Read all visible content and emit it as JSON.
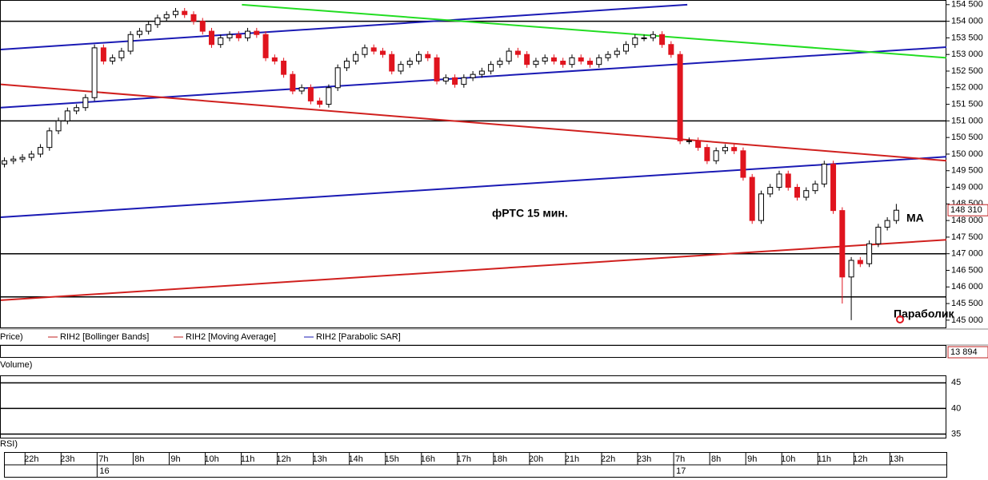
{
  "chart_data": {
    "type": "candlestick",
    "annotations": [
      "фРТС   15 мин.",
      "MA",
      "Параболик"
    ],
    "legend": [
      "Price)",
      "RIH2 [Bollinger Bands]",
      "RIH2 [Moving Average]",
      "RIH2 [Parabolic SAR]"
    ],
    "panels": {
      "volume": "Volume)",
      "rsi": "RSI)"
    },
    "up_color": "#ffffff",
    "down_color": "#e0141e",
    "x": [
      -0.75,
      -0.5,
      -0.25,
      0,
      0.25,
      0.5,
      0.75,
      1,
      1.25,
      1.5,
      1.75,
      2,
      2.25,
      2.5,
      2.75,
      3,
      3.25,
      3.5,
      3.75,
      4,
      4.25,
      4.5,
      4.75,
      5,
      5.25,
      5.5,
      5.75,
      6,
      6.25,
      6.5,
      6.75,
      7,
      7.25,
      7.5,
      7.75,
      8,
      8.25,
      8.5,
      8.75,
      9,
      9.25,
      9.5,
      9.75,
      10,
      10.25,
      10.5,
      10.75,
      11,
      11.25,
      11.5,
      11.75,
      12,
      12.25,
      12.5,
      12.75,
      13,
      13.25,
      13.5,
      13.75,
      14,
      14.25,
      14.5,
      14.75,
      15,
      15.25,
      15.5,
      15.75,
      16,
      16.25,
      16.5,
      16.75,
      17,
      17.25,
      17.5,
      17.75,
      18,
      18.25,
      18.5,
      18.75,
      19,
      19.25,
      19.5,
      19.75,
      20,
      20.25,
      20.5,
      20.75,
      21,
      21.25,
      21.5,
      21.75,
      22,
      22.25,
      22.5,
      22.75,
      23,
      23.25,
      23.5,
      23.75,
      24
    ],
    "open": [
      149700,
      149800,
      149850,
      149900,
      150000,
      150200,
      150700,
      151000,
      151300,
      151400,
      151700,
      153200,
      152800,
      152900,
      153100,
      153600,
      153700,
      153900,
      154100,
      154200,
      154300,
      154200,
      154000,
      153700,
      153300,
      153500,
      153600,
      153500,
      153700,
      153600,
      152900,
      152800,
      152400,
      151900,
      152000,
      151600,
      151500,
      152000,
      152600,
      152800,
      153000,
      153200,
      153100,
      153000,
      152500,
      152700,
      152800,
      153000,
      152900,
      152200,
      152300,
      152100,
      152300,
      152400,
      152500,
      152700,
      152800,
      153100,
      153000,
      152700,
      152800,
      152900,
      152800,
      152700,
      152900,
      152800,
      152700,
      152900,
      153000,
      153100,
      153300,
      153500,
      153500,
      153600,
      153300,
      153000,
      150400,
      150400,
      150200,
      149800,
      150100,
      150200,
      150100,
      149300,
      148000,
      148800,
      149000,
      149400,
      149000,
      148700,
      148900,
      149100,
      149700,
      148300,
      146300,
      146800,
      146700,
      147300,
      147800,
      148000
    ],
    "high": [
      149900,
      149950,
      150000,
      150100,
      150300,
      150800,
      151100,
      151400,
      151500,
      151800,
      153300,
      153300,
      153000,
      153200,
      153700,
      153800,
      154000,
      154200,
      154300,
      154400,
      154400,
      154300,
      154100,
      153800,
      153600,
      153700,
      153700,
      153800,
      153800,
      153700,
      153000,
      152900,
      152500,
      152100,
      152100,
      151700,
      152100,
      152700,
      152900,
      153100,
      153300,
      153300,
      153200,
      153100,
      152800,
      152900,
      153100,
      153100,
      153000,
      152400,
      152400,
      152400,
      152500,
      152600,
      152800,
      152900,
      153200,
      153200,
      153100,
      152900,
      153000,
      153000,
      152900,
      153000,
      153000,
      152900,
      153000,
      153100,
      153200,
      153400,
      153600,
      153600,
      153700,
      153700,
      153400,
      153100,
      150500,
      150500,
      150300,
      150200,
      150300,
      150300,
      150200,
      149400,
      148900,
      149100,
      149500,
      149500,
      149100,
      149000,
      149200,
      149800,
      149800,
      148400,
      146900,
      146900,
      147400,
      147900,
      148100,
      148500
    ],
    "low": [
      149600,
      149700,
      149750,
      149800,
      149900,
      150100,
      150600,
      150900,
      151200,
      151300,
      151600,
      152700,
      152700,
      152800,
      153000,
      153500,
      153600,
      153800,
      154000,
      154100,
      154100,
      153900,
      153600,
      153200,
      153200,
      153400,
      153400,
      153400,
      153500,
      152800,
      152700,
      152300,
      151800,
      151800,
      151500,
      151400,
      151400,
      151900,
      152500,
      152700,
      152900,
      153000,
      152900,
      152400,
      152400,
      152600,
      152700,
      152800,
      152100,
      152100,
      152000,
      152000,
      152200,
      152300,
      152400,
      152600,
      152700,
      152900,
      152600,
      152600,
      152700,
      152700,
      152600,
      152600,
      152700,
      152600,
      152600,
      152800,
      152900,
      153000,
      153200,
      153400,
      153400,
      153200,
      152900,
      150300,
      150300,
      150100,
      149700,
      149700,
      150000,
      150000,
      149200,
      147900,
      147900,
      148700,
      148900,
      148900,
      148600,
      148600,
      148800,
      149000,
      148200,
      145500,
      145000,
      146600,
      146600,
      147200,
      147700,
      147900
    ],
    "close": [
      149800,
      149850,
      149900,
      150000,
      150200,
      150700,
      151000,
      151300,
      151400,
      151700,
      153200,
      152800,
      152900,
      153100,
      153600,
      153700,
      153900,
      154100,
      154200,
      154300,
      154200,
      154000,
      153700,
      153300,
      153500,
      153600,
      153500,
      153700,
      153600,
      152900,
      152800,
      152400,
      151900,
      152000,
      151600,
      151500,
      152000,
      152600,
      152800,
      153000,
      153200,
      153100,
      153000,
      152500,
      152700,
      152800,
      153000,
      152900,
      152200,
      152300,
      152100,
      152300,
      152400,
      152500,
      152700,
      152800,
      153100,
      153000,
      152700,
      152800,
      152900,
      152800,
      152700,
      152900,
      152800,
      152700,
      152900,
      153000,
      153100,
      153300,
      153500,
      153500,
      153600,
      153300,
      153000,
      150400,
      150400,
      150200,
      149800,
      150100,
      150200,
      150100,
      149300,
      148000,
      148800,
      149000,
      149400,
      149000,
      148700,
      148900,
      149100,
      149700,
      148300,
      146300,
      146800,
      146700,
      147300,
      147800,
      148000,
      148310
    ],
    "current_price": 148310,
    "current_price_label": "148 310",
    "volume_last": 13894,
    "volume_last_label": "13 894",
    "hlines": [
      154000,
      151000,
      147000,
      145700
    ],
    "trendlines": [
      {
        "color": "#1a1ab4",
        "x": [
          -0.85,
          18.2
        ],
        "y": [
          153150,
          154500
        ]
      },
      {
        "color": "#1a1ab4",
        "x": [
          -0.85,
          25.39
        ],
        "y": [
          151400,
          153220
        ]
      },
      {
        "color": "#1a1ab4",
        "x": [
          -0.85,
          25.39
        ],
        "y": [
          148100,
          149920
        ]
      },
      {
        "color": "#d0201e",
        "x": [
          -0.85,
          25.39
        ],
        "y": [
          152100,
          149800
        ]
      },
      {
        "color": "#d0201e",
        "x": [
          -0.85,
          25.39
        ],
        "y": [
          145600,
          147420
        ]
      },
      {
        "color": "#22dd22",
        "x": [
          5.84,
          25.39
        ],
        "y": [
          154500,
          152900
        ]
      }
    ],
    "xlim": [
      -0.85,
      25.39
    ],
    "ylim": [
      144780,
      154640
    ],
    "yticks": [
      {
        "value": 145000,
        "label": "145 000"
      },
      {
        "value": 145500,
        "label": "145 500"
      },
      {
        "value": 146000,
        "label": "146 000"
      },
      {
        "value": 146500,
        "label": "146 500"
      },
      {
        "value": 147000,
        "label": "147 000"
      },
      {
        "value": 147500,
        "label": "147 500"
      },
      {
        "value": 148000,
        "label": "148 000"
      },
      {
        "value": 148500,
        "label": "148 500"
      },
      {
        "value": 149000,
        "label": "149 000"
      },
      {
        "value": 149500,
        "label": "149 500"
      },
      {
        "value": 150000,
        "label": "150 000"
      },
      {
        "value": 150500,
        "label": "150 500"
      },
      {
        "value": 151000,
        "label": "151 000"
      },
      {
        "value": 151500,
        "label": "151 500"
      },
      {
        "value": 152000,
        "label": "152 000"
      },
      {
        "value": 152500,
        "label": "152 500"
      },
      {
        "value": 153000,
        "label": "153 000"
      },
      {
        "value": 153500,
        "label": "153 500"
      },
      {
        "value": 154000,
        "label": "154 000"
      },
      {
        "value": 154500,
        "label": "154 500"
      }
    ],
    "xticks": [
      {
        "value": 0,
        "label": "22h"
      },
      {
        "value": 1,
        "label": "23h"
      },
      {
        "value": 2,
        "label": "7h"
      },
      {
        "value": 3,
        "label": "8h"
      },
      {
        "value": 4,
        "label": "9h"
      },
      {
        "value": 5,
        "label": "10h"
      },
      {
        "value": 6,
        "label": "11h"
      },
      {
        "value": 7,
        "label": "12h"
      },
      {
        "value": 8,
        "label": "13h"
      },
      {
        "value": 9,
        "label": "14h"
      },
      {
        "value": 10,
        "label": "15h"
      },
      {
        "value": 11,
        "label": "16h"
      },
      {
        "value": 12,
        "label": "17h"
      },
      {
        "value": 13,
        "label": "18h"
      },
      {
        "value": 14,
        "label": "20h"
      },
      {
        "value": 15,
        "label": "21h"
      },
      {
        "value": 16,
        "label": "22h"
      },
      {
        "value": 17,
        "label": "23h"
      },
      {
        "value": 18,
        "label": "7h"
      },
      {
        "value": 19,
        "label": "8h"
      },
      {
        "value": 20,
        "label": "9h"
      },
      {
        "value": 21,
        "label": "10h"
      },
      {
        "value": 22,
        "label": "11h"
      },
      {
        "value": 23,
        "label": "12h"
      },
      {
        "value": 24,
        "label": "13h"
      }
    ],
    "day_ticks": [
      {
        "value": 2,
        "label": "16"
      },
      {
        "value": 18,
        "label": "17"
      }
    ],
    "rsi_ylim": [
      34.3,
      46.3
    ],
    "rsi_yticks": [
      35,
      40,
      45
    ]
  }
}
